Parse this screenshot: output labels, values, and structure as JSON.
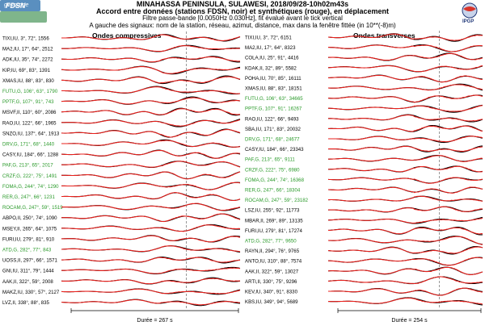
{
  "header": {
    "title": "MINAHASSA PENINSULA, SULAWESI, 2018/09/28-10h02m43s",
    "subtitle": "Accord entre données (stations FDSN, noir) et synthétiques (rouge), en déplacement",
    "filter": "Filtre passe-bande [0.0050Hz 0.030Hz], fit évalué avant le tick vertical",
    "legend": "A gauche des signaux: nom de la station, réseau, azimut, distance, max dans la fenêtre fittée (in 10**(-8)m)"
  },
  "logos": {
    "fdsn": "FDSN",
    "geoscope": "geoscope",
    "ipgp": "IPGP"
  },
  "colors": {
    "data": "#000000",
    "synthetic": "#e8201c",
    "geoscope_station": "#2a9a2a",
    "other_station": "#000000"
  },
  "chart_data": [
    {
      "type": "line",
      "title": "Ondes compressives",
      "xlabel": "Durée = 267 s",
      "duration_s": 267,
      "fit_tick_fraction": 0.7,
      "stations": [
        {
          "label": "TIXI,IU, 3°, 72°, 1556",
          "network": "IU"
        },
        {
          "label": "MA2,IU, 17°, 64°, 2512",
          "network": "IU"
        },
        {
          "label": "ADK,IU, 35°, 74°, 2272",
          "network": "IU"
        },
        {
          "label": "KIP,IU, 69°, 83°, 1391",
          "network": "IU"
        },
        {
          "label": "XMAS,IU, 88°, 83°, 830",
          "network": "IU"
        },
        {
          "label": "FUTU,G, 106°, 63°, 1790",
          "network": "G"
        },
        {
          "label": "PPTF,G, 107°, 91°, 743",
          "network": "G"
        },
        {
          "label": "MSVF,II, 110°, 60°, 2086",
          "network": "II"
        },
        {
          "label": "RAO,IU, 122°, 66°, 1965",
          "network": "IU"
        },
        {
          "label": "SNZO,IU, 137°, 64°, 1913",
          "network": "IU"
        },
        {
          "label": "DRV,G, 171°, 68°, 1440",
          "network": "G"
        },
        {
          "label": "CASY,IU, 184°, 66°, 1288",
          "network": "IU"
        },
        {
          "label": "PAF,G, 213°, 65°, 2017",
          "network": "G"
        },
        {
          "label": "CRZF,G, 222°, 75°, 1491",
          "network": "G"
        },
        {
          "label": "FOMA,G, 244°, 74°, 1290",
          "network": "G"
        },
        {
          "label": "RER,G, 247°, 66°, 1231",
          "network": "G"
        },
        {
          "label": "ROCAM,G, 247°, 59°, 1519",
          "network": "G"
        },
        {
          "label": "ABPO,II, 250°, 74°, 1090",
          "network": "II"
        },
        {
          "label": "MSEY,II, 265°, 64°, 1075",
          "network": "II"
        },
        {
          "label": "FURI,IU, 279°, 81°, 910",
          "network": "IU"
        },
        {
          "label": "ATD,G, 282°, 77°, 843",
          "network": "G"
        },
        {
          "label": "UOSS,II, 297°, 66°, 1571",
          "network": "II"
        },
        {
          "label": "GNI,IU, 311°, 79°, 1444",
          "network": "IU"
        },
        {
          "label": "AAK,II, 322°, 59°, 2008",
          "network": "II"
        },
        {
          "label": "MAKZ,IU, 330°, 57°, 2127",
          "network": "IU"
        },
        {
          "label": "LVZ,II, 338°, 88°, 835",
          "network": "II"
        }
      ]
    },
    {
      "type": "line",
      "title": "Ondes transverses",
      "xlabel": "Durée = 254 s",
      "duration_s": 254,
      "fit_tick_fraction": 0.72,
      "stations": [
        {
          "label": "TIXI,IU, 3°, 72°, 6151",
          "network": "IU"
        },
        {
          "label": "MA2,IU, 17°, 64°, 8323",
          "network": "IU"
        },
        {
          "label": "COLA,IU, 25°, 91°, 4416",
          "network": "IU"
        },
        {
          "label": "KDAK,II, 32°, 89°, 5582",
          "network": "II"
        },
        {
          "label": "POHA,IU, 70°, 85°, 16111",
          "network": "IU"
        },
        {
          "label": "XMAS,IU, 88°, 83°, 18151",
          "network": "IU"
        },
        {
          "label": "FUTU,G, 106°, 63°, 34665",
          "network": "G"
        },
        {
          "label": "PPTF,G, 107°, 91°, 16267",
          "network": "G"
        },
        {
          "label": "RAO,IU, 122°, 66°, 9493",
          "network": "IU"
        },
        {
          "label": "SBA,IU, 171°, 83°, 20032",
          "network": "IU"
        },
        {
          "label": "DRV,G, 171°, 68°, 24677",
          "network": "G"
        },
        {
          "label": "CASY,IU, 184°, 66°, 23343",
          "network": "IU"
        },
        {
          "label": "PAF,G, 213°, 65°, 9111",
          "network": "G"
        },
        {
          "label": "CRZF,G, 222°, 75°, 6980",
          "network": "G"
        },
        {
          "label": "FOMA,G, 244°, 74°, 16368",
          "network": "G"
        },
        {
          "label": "RER,G, 247°, 66°, 18304",
          "network": "G"
        },
        {
          "label": "ROCAM,G, 247°, 59°, 23182",
          "network": "G"
        },
        {
          "label": "LSZ,IU, 255°, 92°, 11773",
          "network": "IU"
        },
        {
          "label": "MBAR,II, 269°, 89°, 13135",
          "network": "II"
        },
        {
          "label": "FURI,IU, 279°, 81°, 17274",
          "network": "IU"
        },
        {
          "label": "ATD,G, 282°, 77°, 9650",
          "network": "G"
        },
        {
          "label": "RAYN,II, 294°, 76°, 9765",
          "network": "II"
        },
        {
          "label": "ANTO,IU, 310°, 88°, 7574",
          "network": "IU"
        },
        {
          "label": "AAK,II, 322°, 59°, 13027",
          "network": "II"
        },
        {
          "label": "ARTI,II, 330°, 75°, 9296",
          "network": "II"
        },
        {
          "label": "KEV,IU, 340°, 91°, 8330",
          "network": "IU"
        },
        {
          "label": "KBS,IU, 349°, 94°, 5689",
          "network": "IU"
        }
      ]
    }
  ]
}
